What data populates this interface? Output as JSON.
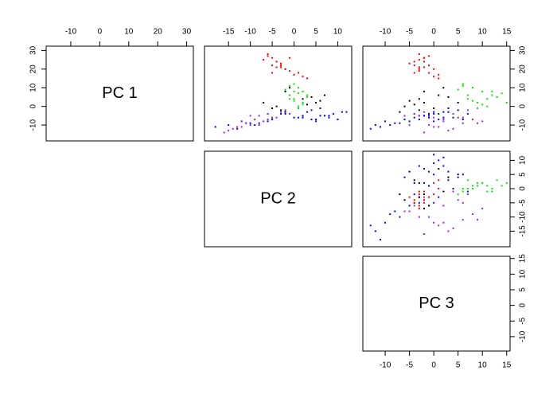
{
  "chart_data": {
    "type": "pairs",
    "variables": [
      {
        "label": "PC 1",
        "lim": [
          -18.5,
          32.3
        ],
        "ticks": [
          -10,
          0,
          10,
          20,
          30
        ]
      },
      {
        "label": "PC 2",
        "lim": [
          -20.5,
          13.2
        ],
        "ticks": [
          -15,
          -10,
          -5,
          0,
          5,
          10
        ]
      },
      {
        "label": "PC 3",
        "lim": [
          -14.6,
          15.7
        ],
        "ticks": [
          -10,
          -5,
          0,
          5,
          10,
          15
        ]
      }
    ],
    "series": [
      {
        "color": "#ff0000",
        "data": [
          [
            28,
            26,
            24,
            22,
            25,
            20,
            18,
            21,
            17,
            23,
            19,
            27,
            16,
            22,
            24,
            15,
            20,
            18,
            26,
            21
          ],
          [
            -6,
            -5,
            -4,
            -3,
            -7,
            -2,
            -5,
            -4,
            0,
            -3,
            -1,
            -6,
            2,
            -5,
            -4,
            3,
            -2,
            1,
            -1,
            -3
          ],
          [
            -3,
            -2,
            -4,
            -1,
            -3,
            0,
            -4,
            -2,
            1,
            -5,
            -3,
            -1,
            0,
            -4,
            -2,
            1,
            -3,
            -1,
            -2,
            -3
          ]
        ]
      },
      {
        "color": "#00ee00",
        "data": [
          [
            12,
            10,
            8,
            6,
            4,
            2,
            0,
            5,
            9,
            7,
            3,
            1,
            11,
            6,
            8,
            -1,
            4,
            2
          ],
          [
            0,
            1,
            2,
            -1,
            0,
            2,
            1,
            3,
            -2,
            1,
            0,
            2,
            -1,
            3,
            0,
            1,
            -1,
            2
          ],
          [
            6,
            8,
            10,
            12,
            7,
            9,
            11,
            13,
            5,
            14,
            8,
            10,
            6,
            7,
            12,
            9,
            11,
            15
          ]
        ]
      },
      {
        "color": "#000000",
        "data": [
          [
            3,
            0,
            -2,
            5,
            8,
            2,
            -4,
            10,
            1,
            -1,
            4,
            6,
            -3,
            2
          ],
          [
            6,
            -4,
            -3,
            4,
            -2,
            5,
            -6,
            -1,
            3,
            -5,
            2,
            7,
            -2,
            -7
          ],
          [
            -5,
            -6,
            -3,
            3,
            -2,
            5,
            -1,
            2,
            -4,
            0,
            -3,
            1,
            -7,
            -2
          ]
        ]
      },
      {
        "color": "#0000ee",
        "data": [
          [
            -5,
            -8,
            -6,
            -4,
            -7,
            -9,
            -3,
            -5,
            -6,
            -10,
            -4,
            -8,
            -2,
            -7,
            -5,
            -11,
            -6,
            -3,
            -9,
            -4,
            -12,
            -7,
            -5,
            -8,
            -1,
            -6,
            -4,
            -10,
            -3,
            -7
          ],
          [
            2,
            5,
            8,
            -2,
            10,
            -8,
            3,
            6,
            0,
            -15,
            9,
            -12,
            4,
            -5,
            7,
            -18,
            1,
            11,
            -10,
            -3,
            -13,
            5,
            8,
            -6,
            6,
            2,
            -1,
            -9,
            12,
            4
          ],
          [
            -2,
            0,
            2,
            -4,
            1,
            -8,
            3,
            -1,
            4,
            -12,
            0,
            -10,
            5,
            -3,
            -2,
            -11,
            -1,
            2,
            -7,
            1,
            -13,
            6,
            -3,
            -5,
            3,
            -4,
            7,
            -9,
            0,
            -6
          ]
        ]
      },
      {
        "color": "#a020f0",
        "data": [
          [
            -5,
            -8,
            -10,
            -12,
            -6,
            -9,
            -3,
            -7,
            -11,
            -4,
            -13,
            -8,
            -6,
            -10,
            -2,
            -5,
            -9,
            -7,
            -14,
            -4,
            -11,
            -6
          ],
          [
            -10,
            -12,
            -8,
            -14,
            -5,
            -11,
            -3,
            -9,
            -13,
            -6,
            -15,
            -7,
            -4,
            -10,
            -2,
            -8,
            -11,
            -6,
            -16,
            -1,
            -12,
            -5
          ],
          [
            -3,
            2,
            -5,
            4,
            0,
            6,
            -2,
            8,
            1,
            -4,
            3,
            10,
            5,
            -1,
            7,
            -6,
            9,
            2,
            -2,
            4,
            0,
            6
          ]
        ]
      }
    ]
  }
}
